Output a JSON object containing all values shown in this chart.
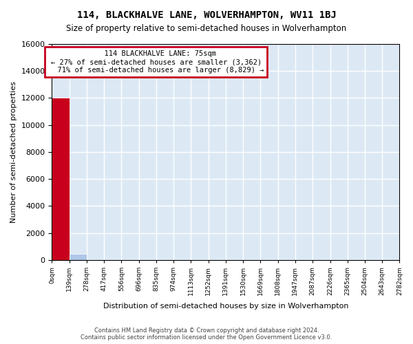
{
  "title": "114, BLACKHALVE LANE, WOLVERHAMPTON, WV11 1BJ",
  "subtitle": "Size of property relative to semi-detached houses in Wolverhampton",
  "xlabel": "Distribution of semi-detached houses by size in Wolverhampton",
  "ylabel": "Number of semi-detached properties",
  "property_size": 75,
  "property_label": "114 BLACKHALVE LANE: 75sqm",
  "pct_smaller": 27,
  "pct_larger": 71,
  "count_smaller": 3362,
  "count_larger": 8829,
  "bin_edges": [
    0,
    139,
    278,
    417,
    556,
    696,
    835,
    974,
    1113,
    1252,
    1391,
    1530,
    1669,
    1808,
    1947,
    2087,
    2226,
    2365,
    2504,
    2643,
    2782
  ],
  "bar_heights": [
    12000,
    450,
    5,
    2,
    1,
    1,
    1,
    0,
    0,
    0,
    0,
    0,
    0,
    0,
    0,
    0,
    0,
    0,
    0,
    0
  ],
  "bar_color_normal": "#aec6e8",
  "bar_color_highlight": "#c8001e",
  "background_color": "#dce9f5",
  "grid_color": "#ffffff",
  "annotation_box_color": "#c8001e",
  "ylim": [
    0,
    16000
  ],
  "yticks": [
    0,
    2000,
    4000,
    6000,
    8000,
    10000,
    12000,
    14000,
    16000
  ],
  "footer": "Contains HM Land Registry data © Crown copyright and database right 2024.\nContains public sector information licensed under the Open Government Licence v3.0.",
  "property_bin_index": 0
}
